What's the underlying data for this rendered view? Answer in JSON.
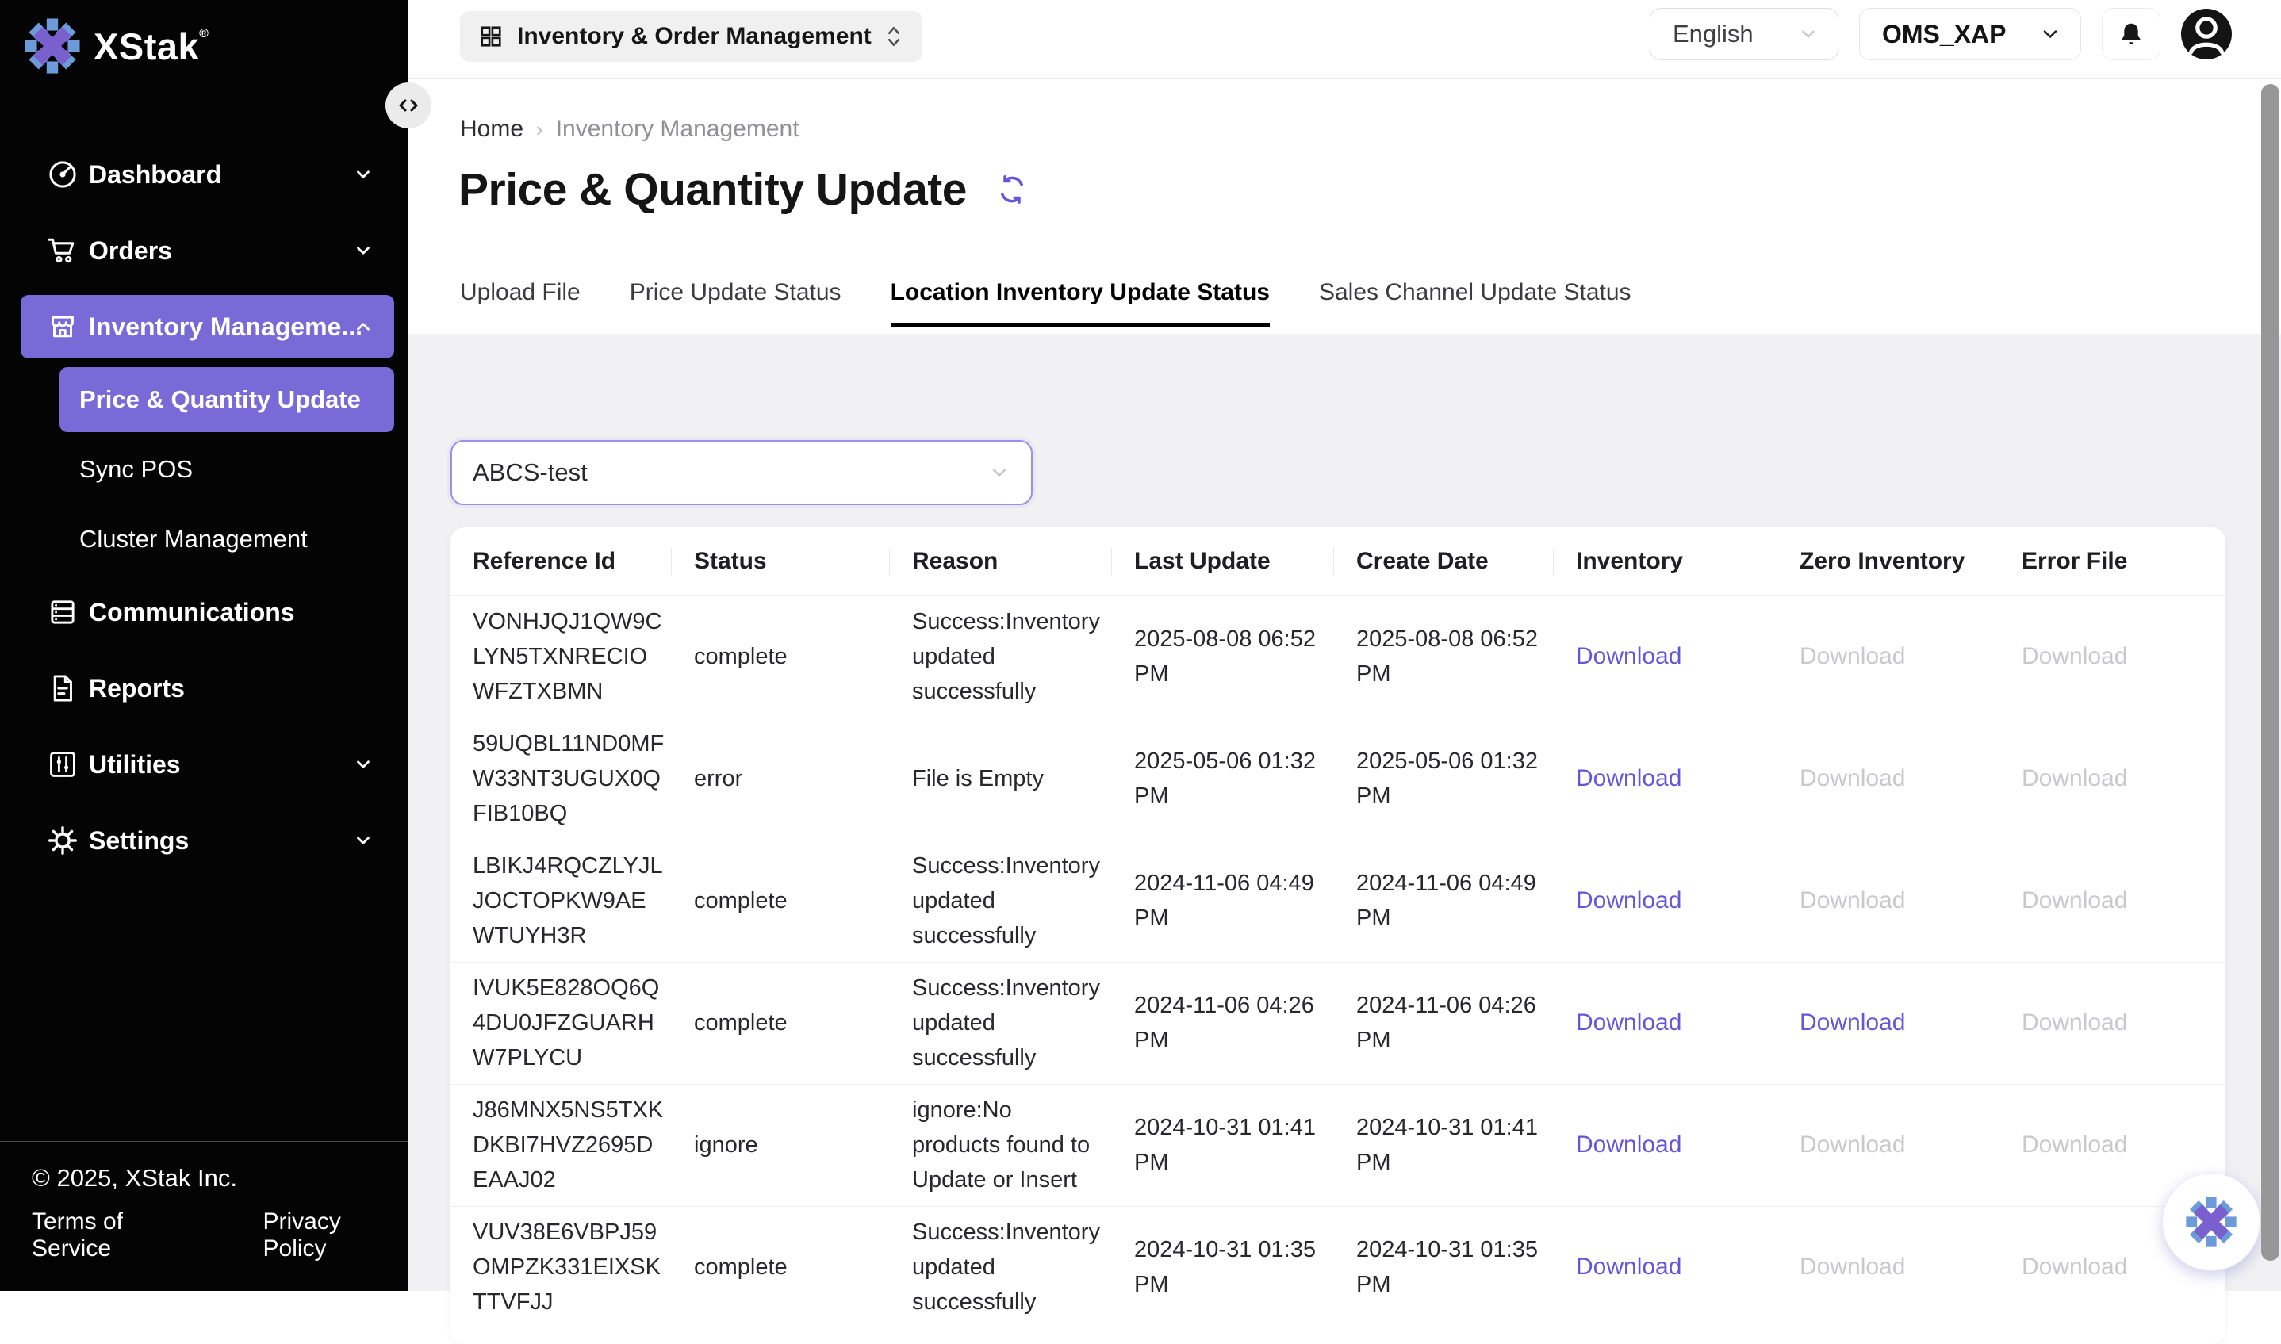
{
  "colors": {
    "accent": "#7a6ad8",
    "link": "#6456d8",
    "sidebar_bg": "#000000",
    "page_bg": "#f1f1f4",
    "tab_underline": "#000000",
    "disabled_link": "#c9c9cd"
  },
  "sidebar": {
    "brand": "XStak",
    "brand_reg_mark": "®",
    "items": [
      {
        "label": "Dashboard",
        "icon": "dashboard-icon",
        "chevron": "down",
        "active": false
      },
      {
        "label": "Orders",
        "icon": "cart-icon",
        "chevron": "down",
        "active": false
      },
      {
        "label": "Inventory Manageme...",
        "icon": "store-icon",
        "chevron": "up",
        "active": true
      },
      {
        "label": "Price & Quantity Update",
        "icon": null,
        "active": true
      },
      {
        "label": "Sync POS",
        "icon": null,
        "active": false
      },
      {
        "label": "Cluster Management",
        "icon": null,
        "active": false
      },
      {
        "label": "Communications",
        "icon": "server-icon",
        "active": false
      },
      {
        "label": "Reports",
        "icon": "document-icon",
        "active": false
      },
      {
        "label": "Utilities",
        "icon": "sliders-icon",
        "chevron": "down",
        "active": false
      },
      {
        "label": "Settings",
        "icon": "gear-icon",
        "chevron": "down",
        "active": false
      }
    ],
    "footer": {
      "copyright": "© 2025, XStak Inc.",
      "terms": "Terms of Service",
      "privacy": "Privacy Policy"
    }
  },
  "topbar": {
    "app_switcher_label": "Inventory & Order Management",
    "language_value": "English",
    "workspace_value": "OMS_XAP"
  },
  "breadcrumb": {
    "home": "Home",
    "current": "Inventory Management"
  },
  "page": {
    "title": "Price & Quantity Update"
  },
  "tabs": [
    {
      "label": "Upload File",
      "active": false
    },
    {
      "label": "Price Update Status",
      "active": false
    },
    {
      "label": "Location Inventory Update Status",
      "active": true
    },
    {
      "label": "Sales Channel Update Status",
      "active": false
    }
  ],
  "filter": {
    "value": "ABCS-test"
  },
  "table": {
    "columns": [
      "Reference Id",
      "Status",
      "Reason",
      "Last Update",
      "Create Date",
      "Inventory",
      "Zero Inventory",
      "Error File"
    ],
    "download_label": "Download",
    "rows": [
      {
        "reference_id": "VONHJQJ1QW9CLYN5TXNRECIOWFZTXBMN",
        "status": "complete",
        "reason": "Success:Inventory updated successfully",
        "last_update": "2025-08-08 06:52 PM",
        "create_date": "2025-08-08 06:52 PM",
        "downloads": {
          "inventory": true,
          "zero_inventory": false,
          "error_file": false
        }
      },
      {
        "reference_id": "59UQBL11ND0MFW33NT3UGUX0QFIB10BQ",
        "status": "error",
        "reason": "File is Empty",
        "last_update": "2025-05-06 01:32 PM",
        "create_date": "2025-05-06 01:32 PM",
        "downloads": {
          "inventory": true,
          "zero_inventory": false,
          "error_file": false
        }
      },
      {
        "reference_id": "LBIKJ4RQCZLYJLJOCTOPKW9AEWTUYH3R",
        "status": "complete",
        "reason": "Success:Inventory updated successfully",
        "last_update": "2024-11-06 04:49 PM",
        "create_date": "2024-11-06 04:49 PM",
        "downloads": {
          "inventory": true,
          "zero_inventory": false,
          "error_file": false
        }
      },
      {
        "reference_id": "IVUK5E828OQ6Q4DU0JFZGUARHW7PLYCU",
        "status": "complete",
        "reason": "Success:Inventory updated successfully",
        "last_update": "2024-11-06 04:26 PM",
        "create_date": "2024-11-06 04:26 PM",
        "downloads": {
          "inventory": true,
          "zero_inventory": true,
          "error_file": false
        }
      },
      {
        "reference_id": "J86MNX5NS5TXKDKBI7HVZ2695DEAAJ02",
        "status": "ignore",
        "reason": "ignore:No products found to Update or Insert",
        "last_update": "2024-10-31 01:41 PM",
        "create_date": "2024-10-31 01:41 PM",
        "downloads": {
          "inventory": true,
          "zero_inventory": false,
          "error_file": false
        }
      },
      {
        "reference_id": "VUV38E6VBPJ59OMPZK331EIXSKTTVFJJ",
        "status": "complete",
        "reason": "Success:Inventory updated successfully",
        "last_update": "2024-10-31 01:35 PM",
        "create_date": "2024-10-31 01:35 PM",
        "downloads": {
          "inventory": true,
          "zero_inventory": false,
          "error_file": false
        }
      }
    ]
  }
}
